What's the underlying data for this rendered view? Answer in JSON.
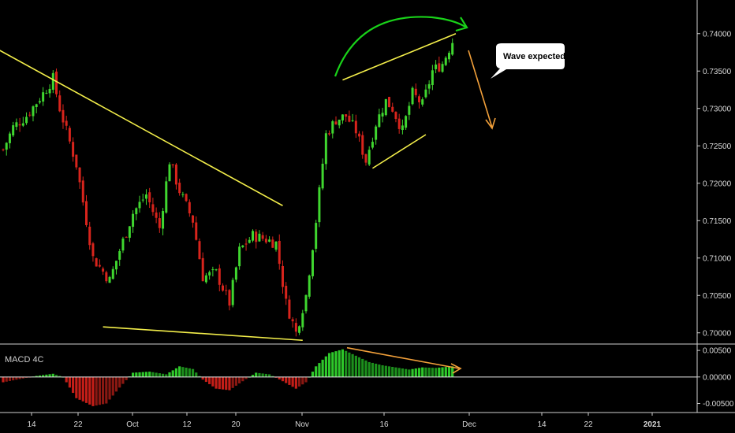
{
  "colors": {
    "background": "#000000",
    "up": "#3fd62f",
    "down": "#d8241c",
    "trendline": "#f3ee4a",
    "arc": "#19d219",
    "forecast": "#f2a03a",
    "axis_line": "#cfcfcf",
    "zero_line": "#e8e8e8"
  },
  "chart_data": [
    {
      "type": "candlestick",
      "name": "price",
      "ylim": [
        0.6985,
        0.7445
      ],
      "y_ticks": [
        "0.74000",
        "0.73500",
        "0.73000",
        "0.72500",
        "0.72000",
        "0.71500",
        "0.71000",
        "0.70500",
        "0.70000"
      ],
      "x_ticks": [
        "14",
        "22",
        "Oct",
        "12",
        "20",
        "Nov",
        "16",
        "Dec",
        "14",
        "22",
        "2021"
      ],
      "grid": false,
      "keypoints": [
        {
          "i": 0,
          "v": 0.7245
        },
        {
          "i": 3,
          "v": 0.7275
        },
        {
          "i": 7,
          "v": 0.729
        },
        {
          "i": 12,
          "v": 0.732
        },
        {
          "i": 15,
          "v": 0.734
        },
        {
          "i": 17,
          "v": 0.73
        },
        {
          "i": 22,
          "v": 0.7225
        },
        {
          "i": 27,
          "v": 0.71
        },
        {
          "i": 32,
          "v": 0.707
        },
        {
          "i": 35,
          "v": 0.711
        },
        {
          "i": 39,
          "v": 0.716
        },
        {
          "i": 43,
          "v": 0.7185
        },
        {
          "i": 47,
          "v": 0.714
        },
        {
          "i": 50,
          "v": 0.723
        },
        {
          "i": 53,
          "v": 0.719
        },
        {
          "i": 57,
          "v": 0.715
        },
        {
          "i": 60,
          "v": 0.7075
        },
        {
          "i": 64,
          "v": 0.708
        },
        {
          "i": 68,
          "v": 0.704
        },
        {
          "i": 71,
          "v": 0.711
        },
        {
          "i": 75,
          "v": 0.713
        },
        {
          "i": 79,
          "v": 0.7125
        },
        {
          "i": 82,
          "v": 0.712
        },
        {
          "i": 85,
          "v": 0.704
        },
        {
          "i": 88,
          "v": 0.7
        },
        {
          "i": 91,
          "v": 0.705
        },
        {
          "i": 94,
          "v": 0.715
        },
        {
          "i": 97,
          "v": 0.7265
        },
        {
          "i": 100,
          "v": 0.7285
        },
        {
          "i": 103,
          "v": 0.729
        },
        {
          "i": 106,
          "v": 0.727
        },
        {
          "i": 109,
          "v": 0.723
        },
        {
          "i": 112,
          "v": 0.728
        },
        {
          "i": 115,
          "v": 0.731
        },
        {
          "i": 117,
          "v": 0.73
        },
        {
          "i": 120,
          "v": 0.727
        },
        {
          "i": 123,
          "v": 0.732
        },
        {
          "i": 126,
          "v": 0.7305
        },
        {
          "i": 129,
          "v": 0.735
        },
        {
          "i": 132,
          "v": 0.736
        },
        {
          "i": 135,
          "v": 0.739
        }
      ],
      "annotations": {
        "callout_text": "Wave expected",
        "lines": [
          {
            "name": "upper-descending-trendline",
            "from": {
              "i": -2,
              "v": 0.738
            },
            "to": {
              "i": 84,
              "v": 0.717
            }
          },
          {
            "name": "lower-support-line",
            "from": {
              "i": 30,
              "v": 0.7008
            },
            "to": {
              "i": 90,
              "v": 0.699
            }
          },
          {
            "name": "wedge-upper-line",
            "from": {
              "i": 102,
              "v": 0.7338
            },
            "to": {
              "i": 136,
              "v": 0.74
            }
          },
          {
            "name": "wedge-lower-line",
            "from": {
              "i": 111,
              "v": 0.722
            },
            "to": {
              "i": 127,
              "v": 0.7265
            }
          }
        ]
      }
    },
    {
      "type": "histogram",
      "name": "macd",
      "label": "MACD 4C",
      "ylim": [
        -0.0067,
        0.0062
      ],
      "y_ticks": [
        "0.00500",
        "0.00000",
        "-0.00500"
      ],
      "keypoints": [
        {
          "i": 0,
          "v": -0.001
        },
        {
          "i": 5,
          "v": -0.0004
        },
        {
          "i": 10,
          "v": 0.0002
        },
        {
          "i": 15,
          "v": 0.0006
        },
        {
          "i": 18,
          "v": 0.0
        },
        {
          "i": 22,
          "v": -0.004
        },
        {
          "i": 27,
          "v": -0.0055
        },
        {
          "i": 31,
          "v": -0.005
        },
        {
          "i": 35,
          "v": -0.002
        },
        {
          "i": 39,
          "v": 0.0008
        },
        {
          "i": 44,
          "v": 0.001
        },
        {
          "i": 49,
          "v": 0.0005
        },
        {
          "i": 53,
          "v": 0.002
        },
        {
          "i": 57,
          "v": 0.0015
        },
        {
          "i": 60,
          "v": -0.0005
        },
        {
          "i": 64,
          "v": -0.0022
        },
        {
          "i": 68,
          "v": -0.0025
        },
        {
          "i": 72,
          "v": -0.0008
        },
        {
          "i": 76,
          "v": 0.0008
        },
        {
          "i": 80,
          "v": 0.0005
        },
        {
          "i": 84,
          "v": -0.0008
        },
        {
          "i": 88,
          "v": -0.0022
        },
        {
          "i": 91,
          "v": -0.001
        },
        {
          "i": 94,
          "v": 0.002
        },
        {
          "i": 98,
          "v": 0.0045
        },
        {
          "i": 102,
          "v": 0.0052
        },
        {
          "i": 106,
          "v": 0.004
        },
        {
          "i": 110,
          "v": 0.0028
        },
        {
          "i": 114,
          "v": 0.0022
        },
        {
          "i": 118,
          "v": 0.0018
        },
        {
          "i": 122,
          "v": 0.0014
        },
        {
          "i": 126,
          "v": 0.0018
        },
        {
          "i": 130,
          "v": 0.0017
        },
        {
          "i": 135,
          "v": 0.002
        }
      ]
    }
  ]
}
